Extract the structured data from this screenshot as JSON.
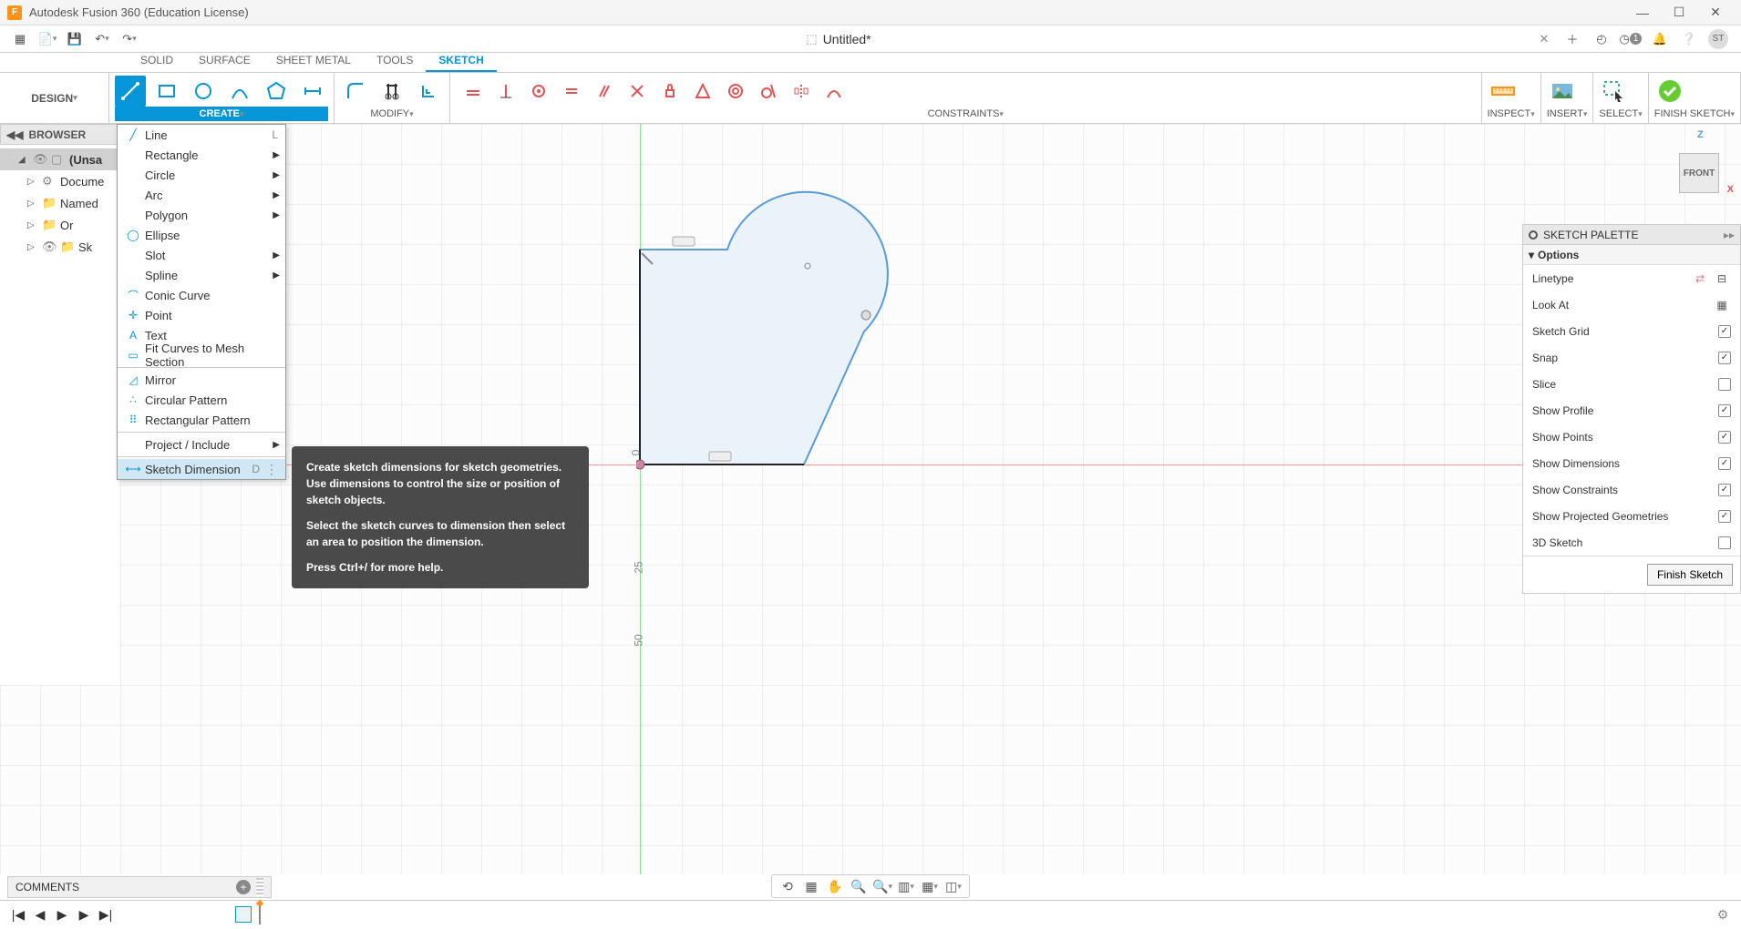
{
  "app": {
    "title": "Autodesk Fusion 360 (Education License)"
  },
  "document": {
    "title": "Untitled*"
  },
  "tabs": [
    "SOLID",
    "SURFACE",
    "SHEET METAL",
    "TOOLS",
    "SKETCH"
  ],
  "active_tab": "SKETCH",
  "design_button": "DESIGN",
  "ribbon_groups": {
    "create": "CREATE",
    "modify": "MODIFY",
    "constraints": "CONSTRAINTS",
    "inspect": "INSPECT",
    "insert": "INSERT",
    "select": "SELECT",
    "finish": "FINISH SKETCH"
  },
  "browser": {
    "title": "BROWSER",
    "root": "(Unsa",
    "items": [
      "Docume",
      "Named",
      "Or",
      "Sk"
    ]
  },
  "create_menu": [
    {
      "label": "Line",
      "shortcut": "L",
      "icon": "line"
    },
    {
      "label": "Rectangle",
      "submenu": true
    },
    {
      "label": "Circle",
      "submenu": true
    },
    {
      "label": "Arc",
      "submenu": true
    },
    {
      "label": "Polygon",
      "submenu": true
    },
    {
      "label": "Ellipse",
      "icon": "ellipse"
    },
    {
      "label": "Slot",
      "submenu": true
    },
    {
      "label": "Spline",
      "submenu": true
    },
    {
      "label": "Conic Curve",
      "icon": "conic"
    },
    {
      "label": "Point",
      "icon": "point"
    },
    {
      "label": "Text",
      "icon": "text"
    },
    {
      "label": "Fit Curves to Mesh Section",
      "icon": "fit"
    },
    {
      "label": "Mirror",
      "icon": "mirror",
      "sep_before": true
    },
    {
      "label": "Circular Pattern",
      "icon": "circpat"
    },
    {
      "label": "Rectangular Pattern",
      "icon": "rectpat"
    },
    {
      "label": "Project / Include",
      "submenu": true,
      "sep_before": true
    },
    {
      "label": "Sketch Dimension",
      "shortcut": "D",
      "icon": "dim",
      "highlighted": true,
      "dots": true,
      "sep_before": true
    }
  ],
  "tooltip": {
    "p1": "Create sketch dimensions for sketch geometries. Use dimensions to control the size or position of sketch objects.",
    "p2": "Select the sketch curves to dimension then select an area to position the dimension.",
    "p3": "Press Ctrl+/ for more help."
  },
  "palette": {
    "title": "SKETCH PALETTE",
    "section": "Options",
    "rows": [
      {
        "label": "Linetype",
        "type": "icons"
      },
      {
        "label": "Look At",
        "type": "icon"
      },
      {
        "label": "Sketch Grid",
        "type": "check",
        "on": true
      },
      {
        "label": "Snap",
        "type": "check",
        "on": true
      },
      {
        "label": "Slice",
        "type": "check",
        "on": false
      },
      {
        "label": "Show Profile",
        "type": "check",
        "on": true
      },
      {
        "label": "Show Points",
        "type": "check",
        "on": true
      },
      {
        "label": "Show Dimensions",
        "type": "check",
        "on": true
      },
      {
        "label": "Show Constraints",
        "type": "check",
        "on": true
      },
      {
        "label": "Show Projected Geometries",
        "type": "check",
        "on": true
      },
      {
        "label": "3D Sketch",
        "type": "check",
        "on": false
      }
    ],
    "finish_btn": "Finish Sketch"
  },
  "viewcube": {
    "face": "FRONT",
    "z": "Z",
    "x": "X"
  },
  "comments": {
    "label": "COMMENTS"
  },
  "ruler": {
    "zero": "0",
    "r25": "25",
    "r50": "50"
  },
  "job_badge": "1",
  "user_initials": "ST",
  "colors": {
    "accent": "#0696d7",
    "sketch_stroke": "#5b9bd5",
    "sketch_fill": "#e8f2f8",
    "axis_x": "#d55",
    "axis_y": "#5c5"
  }
}
